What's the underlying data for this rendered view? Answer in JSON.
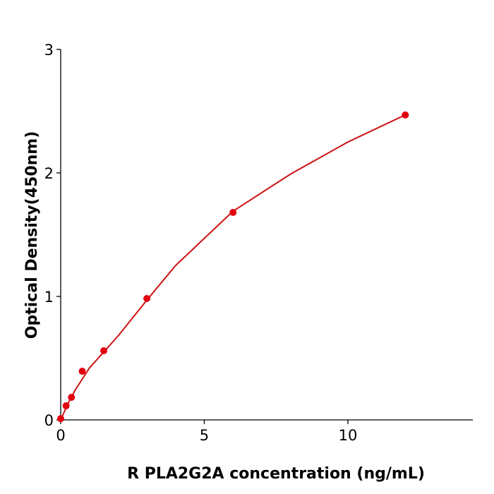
{
  "chart_data": {
    "type": "scatter",
    "x_label": "R  PLA2G2A concentration (ng/mL)",
    "y_label": "Optical Density(450nm)",
    "x": [
      0,
      0.1875,
      0.375,
      0.75,
      1.5,
      3,
      6,
      12
    ],
    "values": [
      0.01,
      0.114,
      0.183,
      0.394,
      0.56,
      0.983,
      1.68,
      2.469
    ],
    "color": "#e3000f",
    "curve": {
      "x": [
        0,
        0.25,
        0.5,
        1,
        2,
        3,
        4,
        6,
        8,
        10,
        12
      ],
      "values": [
        0,
        0.13,
        0.24,
        0.42,
        0.68,
        0.97,
        1.25,
        1.69,
        1.99,
        2.25,
        2.47
      ],
      "color": "#cc1111"
    },
    "xlim": [
      0,
      14.35
    ],
    "xticks": [
      0,
      5,
      10
    ],
    "ylim": [
      0,
      3
    ],
    "yticks": [
      0,
      1,
      2,
      3
    ]
  }
}
